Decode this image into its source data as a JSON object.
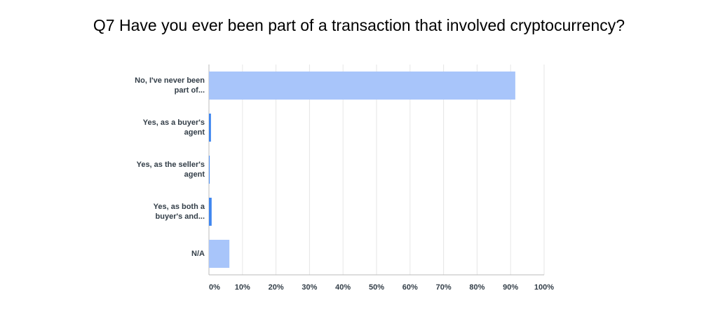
{
  "chart_data": {
    "type": "bar",
    "orientation": "horizontal",
    "title": "Q7 Have you ever been part of a transaction that involved cryptocurrency?",
    "categories": [
      "No, I've never been part of...",
      "Yes, as a buyer's agent",
      "Yes, as the seller's agent",
      "Yes, as both a buyer's and...",
      "N/A"
    ],
    "values": [
      91.4,
      0.6,
      0.2,
      0.8,
      6.1
    ],
    "colors": [
      "#a8c5fa",
      "#3f86ef",
      "#3f86ef",
      "#3f86ef",
      "#a8c5fa"
    ],
    "xlim": [
      0,
      100
    ],
    "xticks": [
      {
        "value": 0,
        "label": "0%"
      },
      {
        "value": 10,
        "label": "10%"
      },
      {
        "value": 20,
        "label": "20%"
      },
      {
        "value": 30,
        "label": "30%"
      },
      {
        "value": 40,
        "label": "40%"
      },
      {
        "value": 50,
        "label": "50%"
      },
      {
        "value": 60,
        "label": "60%"
      },
      {
        "value": 70,
        "label": "70%"
      },
      {
        "value": 80,
        "label": "80%"
      },
      {
        "value": 90,
        "label": "90%"
      },
      {
        "value": 100,
        "label": "100%"
      }
    ],
    "grid": true
  }
}
